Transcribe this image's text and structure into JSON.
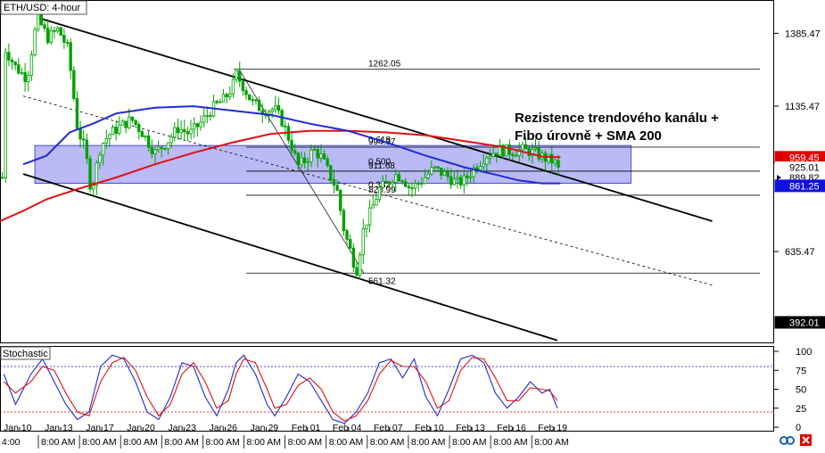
{
  "symbol_label": "ETH/USD: 4-hour",
  "annotation": {
    "line1": "Rezistence trendového kanálu +",
    "line2": "Fibo úrovně + SMA 200"
  },
  "colors": {
    "candle": "#00a000",
    "sma_blue": "#1f2bd6",
    "sma_red": "#e01010",
    "zone": "#8c8cf0",
    "stoch_k": "#1f2bd6",
    "stoch_d": "#e01010",
    "badge_red": "#e00000",
    "badge_blue": "#1010e0",
    "badge_black": "#000000"
  },
  "chart_data": [
    {
      "type": "candlestick",
      "title": "ETH/USD: 4-hour",
      "y_range": [
        320,
        1500
      ],
      "y_ticks": [
        1385.47,
        1135.47,
        635.47
      ],
      "price_badges": [
        {
          "label": "959.45",
          "value": 959.45,
          "color": "red"
        },
        {
          "label": "925.01",
          "value": 925.01,
          "color": "white"
        },
        {
          "label": "889.82",
          "value": 889.82,
          "color": "white"
        },
        {
          "label": "861.25",
          "value": 861.25,
          "color": "blue"
        },
        {
          "label": "392.01",
          "value": 392.01,
          "color": "black"
        }
      ],
      "fib_levels": [
        {
          "label": "1262.05",
          "value": 1262.05
        },
        {
          "label": "0.618",
          "value": 1000
        },
        {
          "label": "994.37",
          "value": 994.37
        },
        {
          "label": "0.500",
          "value": 925
        },
        {
          "label": "911.68",
          "value": 911.68
        },
        {
          "label": "0.382",
          "value": 845
        },
        {
          "label": "828.99",
          "value": 828.99
        },
        {
          "label": "561.32",
          "value": 561.32
        }
      ],
      "resistance_zone": [
        870,
        1000
      ],
      "channel": {
        "upper": [
          [
            0.048,
            1440
          ],
          [
            0.92,
            740
          ]
        ],
        "lower": [
          [
            0.03,
            902
          ],
          [
            0.72,
            330
          ]
        ],
        "mid": [
          [
            0.03,
            1170
          ],
          [
            0.92,
            520
          ]
        ]
      },
      "price_path": [
        [
          0.005,
          1340
        ],
        [
          0.02,
          1270
        ],
        [
          0.035,
          1230
        ],
        [
          0.048,
          1440
        ],
        [
          0.062,
          1370
        ],
        [
          0.075,
          1400
        ],
        [
          0.088,
          1330
        ],
        [
          0.1,
          1060
        ],
        [
          0.11,
          985
        ],
        [
          0.118,
          840
        ],
        [
          0.13,
          1000
        ],
        [
          0.142,
          1040
        ],
        [
          0.155,
          1065
        ],
        [
          0.17,
          1090
        ],
        [
          0.185,
          1040
        ],
        [
          0.2,
          975
        ],
        [
          0.215,
          1010
        ],
        [
          0.23,
          1060
        ],
        [
          0.245,
          1040
        ],
        [
          0.26,
          1080
        ],
        [
          0.275,
          1130
        ],
        [
          0.29,
          1160
        ],
        [
          0.3,
          1200
        ],
        [
          0.305,
          1245
        ],
        [
          0.315,
          1200
        ],
        [
          0.325,
          1150
        ],
        [
          0.34,
          1120
        ],
        [
          0.355,
          1125
        ],
        [
          0.365,
          1080
        ],
        [
          0.375,
          1010
        ],
        [
          0.385,
          930
        ],
        [
          0.395,
          950
        ],
        [
          0.405,
          985
        ],
        [
          0.415,
          960
        ],
        [
          0.425,
          905
        ],
        [
          0.435,
          850
        ],
        [
          0.445,
          700
        ],
        [
          0.455,
          620
        ],
        [
          0.46,
          561
        ],
        [
          0.47,
          720
        ],
        [
          0.48,
          780
        ],
        [
          0.49,
          850
        ],
        [
          0.5,
          870
        ],
        [
          0.51,
          900
        ],
        [
          0.52,
          890
        ],
        [
          0.53,
          850
        ],
        [
          0.545,
          880
        ],
        [
          0.56,
          920
        ],
        [
          0.575,
          900
        ],
        [
          0.59,
          870
        ],
        [
          0.6,
          880
        ],
        [
          0.615,
          930
        ],
        [
          0.63,
          970
        ],
        [
          0.645,
          985
        ],
        [
          0.66,
          980
        ],
        [
          0.675,
          985
        ],
        [
          0.69,
          975
        ],
        [
          0.705,
          955
        ],
        [
          0.715,
          945
        ],
        [
          0.72,
          929
        ],
        [
          0.724,
          889.82
        ]
      ],
      "sma_blue": [
        [
          0.03,
          935
        ],
        [
          0.06,
          965
        ],
        [
          0.09,
          1045
        ],
        [
          0.12,
          1075
        ],
        [
          0.15,
          1110
        ],
        [
          0.2,
          1130
        ],
        [
          0.25,
          1135
        ],
        [
          0.3,
          1120
        ],
        [
          0.35,
          1105
        ],
        [
          0.4,
          1075
        ],
        [
          0.45,
          1050
        ],
        [
          0.5,
          1010
        ],
        [
          0.55,
          965
        ],
        [
          0.6,
          925
        ],
        [
          0.64,
          900
        ],
        [
          0.67,
          880
        ],
        [
          0.7,
          870
        ],
        [
          0.724,
          870
        ]
      ],
      "sma_red": [
        [
          0.0,
          740
        ],
        [
          0.03,
          775
        ],
        [
          0.06,
          815
        ],
        [
          0.1,
          850
        ],
        [
          0.15,
          890
        ],
        [
          0.2,
          935
        ],
        [
          0.25,
          975
        ],
        [
          0.3,
          1010
        ],
        [
          0.35,
          1040
        ],
        [
          0.4,
          1050
        ],
        [
          0.45,
          1050
        ],
        [
          0.5,
          1045
        ],
        [
          0.55,
          1035
        ],
        [
          0.6,
          1015
        ],
        [
          0.65,
          995
        ],
        [
          0.7,
          962
        ],
        [
          0.724,
          959.45
        ]
      ]
    },
    {
      "type": "line",
      "title": "Stochastic",
      "y_range": [
        0,
        100
      ],
      "y_ticks": [
        100,
        75,
        50,
        25,
        0
      ],
      "levels": [
        80,
        20
      ],
      "series": [
        {
          "key": "k",
          "values": [
            [
              0.005,
              70
            ],
            [
              0.02,
              30
            ],
            [
              0.04,
              70
            ],
            [
              0.055,
              90
            ],
            [
              0.07,
              60
            ],
            [
              0.085,
              30
            ],
            [
              0.1,
              10
            ],
            [
              0.115,
              20
            ],
            [
              0.13,
              80
            ],
            [
              0.145,
              95
            ],
            [
              0.16,
              90
            ],
            [
              0.175,
              60
            ],
            [
              0.19,
              20
            ],
            [
              0.205,
              10
            ],
            [
              0.22,
              40
            ],
            [
              0.235,
              85
            ],
            [
              0.25,
              80
            ],
            [
              0.265,
              40
            ],
            [
              0.28,
              15
            ],
            [
              0.295,
              50
            ],
            [
              0.305,
              85
            ],
            [
              0.315,
              95
            ],
            [
              0.33,
              70
            ],
            [
              0.345,
              30
            ],
            [
              0.355,
              15
            ],
            [
              0.37,
              40
            ],
            [
              0.385,
              70
            ],
            [
              0.4,
              60
            ],
            [
              0.415,
              35
            ],
            [
              0.43,
              10
            ],
            [
              0.445,
              5
            ],
            [
              0.46,
              20
            ],
            [
              0.475,
              45
            ],
            [
              0.49,
              85
            ],
            [
              0.505,
              90
            ],
            [
              0.52,
              65
            ],
            [
              0.535,
              90
            ],
            [
              0.55,
              40
            ],
            [
              0.565,
              15
            ],
            [
              0.58,
              50
            ],
            [
              0.595,
              90
            ],
            [
              0.61,
              95
            ],
            [
              0.625,
              85
            ],
            [
              0.64,
              45
            ],
            [
              0.655,
              25
            ],
            [
              0.67,
              40
            ],
            [
              0.685,
              60
            ],
            [
              0.7,
              45
            ],
            [
              0.71,
              50
            ],
            [
              0.72,
              25
            ]
          ]
        },
        {
          "key": "d",
          "values": [
            [
              0.005,
              60
            ],
            [
              0.02,
              45
            ],
            [
              0.04,
              60
            ],
            [
              0.055,
              80
            ],
            [
              0.07,
              75
            ],
            [
              0.085,
              45
            ],
            [
              0.1,
              20
            ],
            [
              0.115,
              15
            ],
            [
              0.13,
              60
            ],
            [
              0.145,
              85
            ],
            [
              0.16,
              92
            ],
            [
              0.175,
              75
            ],
            [
              0.19,
              40
            ],
            [
              0.205,
              15
            ],
            [
              0.22,
              30
            ],
            [
              0.235,
              70
            ],
            [
              0.25,
              85
            ],
            [
              0.265,
              60
            ],
            [
              0.28,
              25
            ],
            [
              0.295,
              35
            ],
            [
              0.305,
              70
            ],
            [
              0.315,
              90
            ],
            [
              0.33,
              85
            ],
            [
              0.345,
              50
            ],
            [
              0.355,
              25
            ],
            [
              0.37,
              30
            ],
            [
              0.385,
              55
            ],
            [
              0.4,
              65
            ],
            [
              0.415,
              50
            ],
            [
              0.43,
              20
            ],
            [
              0.445,
              8
            ],
            [
              0.46,
              15
            ],
            [
              0.475,
              35
            ],
            [
              0.49,
              70
            ],
            [
              0.505,
              88
            ],
            [
              0.52,
              80
            ],
            [
              0.535,
              80
            ],
            [
              0.55,
              60
            ],
            [
              0.565,
              25
            ],
            [
              0.58,
              35
            ],
            [
              0.595,
              75
            ],
            [
              0.61,
              92
            ],
            [
              0.625,
              90
            ],
            [
              0.64,
              65
            ],
            [
              0.655,
              35
            ],
            [
              0.67,
              35
            ],
            [
              0.685,
              52
            ],
            [
              0.7,
              50
            ],
            [
              0.71,
              48
            ],
            [
              0.72,
              35
            ]
          ]
        }
      ]
    }
  ],
  "x_axis": {
    "dates": [
      "Jan 10",
      "Jan 13",
      "Jan 17",
      "Jan 20",
      "Jan 23",
      "Jan 26",
      "Jan 29",
      "Feb 01",
      "Feb 04",
      "Feb 07",
      "Feb 10",
      "Feb 13",
      "Feb 16",
      "Feb 19"
    ],
    "times": [
      "4:00",
      "8:00 AM",
      "8:00 AM",
      "8:00 AM",
      "8:00 AM",
      "8:00 AM",
      "8:00 AM",
      "8:00 AM",
      "8:00 AM",
      "8:00 AM",
      "8:00 AM",
      "8:00 AM",
      "8:00 AM",
      "8:00 AM"
    ]
  }
}
